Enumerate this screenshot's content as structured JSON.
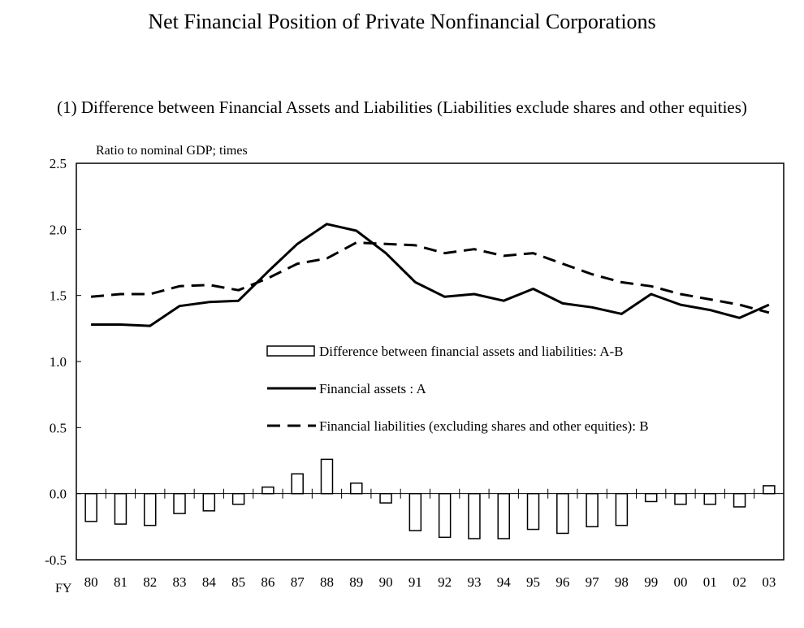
{
  "title": "Net Financial Position of Private Nonfinancial Corporations",
  "subtitle": "(1) Difference between Financial Assets and Liabilities (Liabilities exclude shares and other equities)",
  "chart_data": {
    "type": "bar",
    "ylabel": "Ratio to nominal GDP; times",
    "x_axis_prefix": "FY",
    "ylim": [
      -0.5,
      2.5
    ],
    "yticks": [
      "2.5",
      "2.0",
      "1.5",
      "1.0",
      "0.5",
      "0.0",
      "-0.5"
    ],
    "categories": [
      "80",
      "81",
      "82",
      "83",
      "84",
      "85",
      "86",
      "87",
      "88",
      "89",
      "90",
      "91",
      "92",
      "93",
      "94",
      "95",
      "96",
      "97",
      "98",
      "99",
      "00",
      "01",
      "02",
      "03"
    ],
    "legend_position": "center",
    "series": [
      {
        "name": "Difference between financial assets and liabilities:  A-B",
        "kind": "bar",
        "values": [
          -0.21,
          -0.23,
          -0.24,
          -0.15,
          -0.13,
          -0.08,
          0.05,
          0.15,
          0.26,
          0.08,
          -0.07,
          -0.28,
          -0.33,
          -0.34,
          -0.34,
          -0.27,
          -0.3,
          -0.25,
          -0.24,
          -0.06,
          -0.08,
          -0.08,
          -0.1,
          0.06
        ]
      },
      {
        "name": "Financial assets :  A",
        "kind": "line",
        "style": "solid",
        "values": [
          1.28,
          1.28,
          1.27,
          1.42,
          1.45,
          1.46,
          1.68,
          1.89,
          2.04,
          1.99,
          1.82,
          1.6,
          1.49,
          1.51,
          1.46,
          1.55,
          1.44,
          1.41,
          1.36,
          1.51,
          1.43,
          1.39,
          1.33,
          1.43
        ]
      },
      {
        "name": "Financial liabilities (excluding shares and other equities):  B",
        "kind": "line",
        "style": "dashed",
        "values": [
          1.49,
          1.51,
          1.51,
          1.57,
          1.58,
          1.54,
          1.63,
          1.74,
          1.78,
          1.9,
          1.89,
          1.88,
          1.82,
          1.85,
          1.8,
          1.82,
          1.74,
          1.66,
          1.6,
          1.57,
          1.51,
          1.47,
          1.43,
          1.37
        ]
      }
    ]
  }
}
